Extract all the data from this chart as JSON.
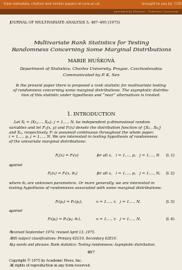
{
  "figsize": [
    2.63,
    3.9
  ],
  "dpi": 100,
  "bg_color": "#f2ede3",
  "header_bar1_color": "#c8621a",
  "header_bar2_color": "#7a3b10",
  "header_text1": "View metadata, citation and similar papers at core.ac.uk",
  "header_text2": "provided by Elsevier - Publisher Connector",
  "header_text3": "brought to you by  CORE",
  "journal_line": "JOURNAL OF MULTIVARIATE ANALYSIS 5, 487–495 (1975)",
  "title1": "Multivariate Rank Statistics for Testing",
  "title2": "Randomness Concerning Some Marginal Distributions",
  "author": "MARIE HUŠKOVÁ",
  "affil1": "Department of Statistics, Charles University, Prague, Czechoslovakia",
  "affil2": "Communicated by P. K. Sen",
  "abstract": "In the present paper there is proposed a rank statistic for multivariate testing\nof randomness concerning some marginal distributions. The asymptotic distribu-\ntion of this statistic under hypothesis and “near” alternatives is treated.",
  "section": "1. INTRODUCTION",
  "intro_text1": "    Let X",
  "intro_text_full": "    Let Xⱼ = (X₁ⱼ,..., Xₚⱼ), j = 1,..., N, be independent p-dimensional random\nvariables and let Fᵢⱼ(x, y) and Fᵢ(x) denote the distribution function of {Xᵢⱼ , Xₖⱼ}\nand Xᵢⱼ, respectively. Fᵢ is assumed continuous throughout the whole paper,\ni = 1,..., p, j = 1,..., N. We are interested in testing hypothesis of randomness\nof the univariate marginal distributions:",
  "eq11_left": "Fᵢⱼ(x) = Fᵢ(x)",
  "eq11_mid": "for all x,   i = 1,..., p,   j = 1,..., N",
  "eq11_num": "(1.1)",
  "against1": "against",
  "eq12_left": "Fᵢⱼ(x) = Fᵢ(x, θᵢⱼ)",
  "eq12_mid": "for all x,   i = 1,..., p,   j = 1,..., N,",
  "eq12_num": "(1.2)",
  "text12": "where θᵢⱼ are unknown parameters. Or more generally, we are interested in\ntesting hypothesis of randomness associated with some marginal distributions:",
  "eq13_left": "Fᵥ(μⱼ) = Pᵥ(μⱼ),",
  "eq13_mid": "v = 1,..., r,   j = 1,..., N,",
  "eq13_num": "(1.3)",
  "against2": "against",
  "eq14_left": "Fᵥ(μⱼ) = Pᵥ(μⱼ; θᵥ),",
  "eq14_mid": "v = 1,..., r,   j = 1,..., N,",
  "eq14_num": "(1.4)",
  "received": "Received September 1974; revised April 13, 1975.",
  "ams": "AMS subject classifications: Primary 62G10, Secondary 62E10.",
  "keywords": "Key words and phrases: Rank statistics; Testing randomness; Asymptotic distribution.",
  "page_num": "487",
  "copyright": "Copyright © 1975 by Academic Press, Inc.",
  "rights": "All rights of reproduction in any form reserved."
}
